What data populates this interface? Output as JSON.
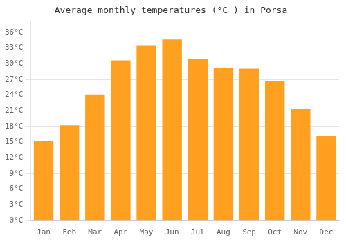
{
  "chart_data": {
    "type": "bar",
    "title": "Average monthly temperatures (°C ) in Porsa",
    "categories": [
      "Jan",
      "Feb",
      "Mar",
      "Apr",
      "May",
      "Jun",
      "Jul",
      "Aug",
      "Sep",
      "Oct",
      "Nov",
      "Dec"
    ],
    "values": [
      15.2,
      18.2,
      24.1,
      30.6,
      33.5,
      34.6,
      30.9,
      29.1,
      29.0,
      26.7,
      21.3,
      16.2
    ],
    "color": "#FFA020",
    "ylim": [
      0,
      38
    ],
    "yticks": [
      {
        "value": 0,
        "label": "0°C"
      },
      {
        "value": 3,
        "label": "3°C"
      },
      {
        "value": 6,
        "label": "6°C"
      },
      {
        "value": 9,
        "label": "9°C"
      },
      {
        "value": 12,
        "label": "12°C"
      },
      {
        "value": 15,
        "label": "15°C"
      },
      {
        "value": 18,
        "label": "18°C"
      },
      {
        "value": 21,
        "label": "21°C"
      },
      {
        "value": 24,
        "label": "24°C"
      },
      {
        "value": 27,
        "label": "27°C"
      },
      {
        "value": 30,
        "label": "30°C"
      },
      {
        "value": 33,
        "label": "33°C"
      },
      {
        "value": 36,
        "label": "36°C"
      }
    ],
    "grid": true
  }
}
